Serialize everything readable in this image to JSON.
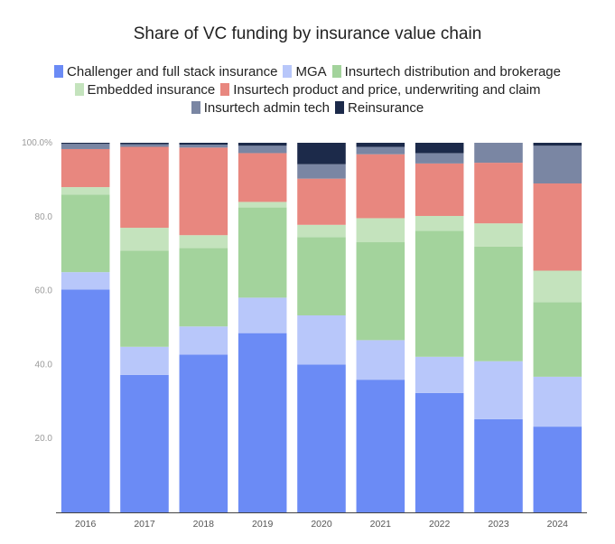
{
  "chart_data": {
    "type": "bar",
    "stacked": true,
    "title": "Share of VC funding by insurance value chain",
    "xlabel": "",
    "ylabel": "",
    "ylim": [
      0,
      100
    ],
    "yticks": [
      "20.0",
      "40.0",
      "60.0",
      "80.0",
      "100.0%"
    ],
    "ytick_values": [
      20,
      40,
      60,
      80,
      100
    ],
    "categories": [
      "2016",
      "2017",
      "2018",
      "2019",
      "2020",
      "2021",
      "2022",
      "2023",
      "2024"
    ],
    "series": [
      {
        "name": "Challenger and full stack insurance",
        "color": "#6b8bf5",
        "values": [
          60.3,
          37.2,
          42.7,
          48.5,
          40.0,
          35.9,
          32.3,
          25.2,
          23.2
        ]
      },
      {
        "name": "MGA",
        "color": "#b8c7fa",
        "values": [
          4.7,
          7.6,
          7.6,
          9.6,
          13.3,
          10.7,
          9.8,
          15.7,
          13.5
        ]
      },
      {
        "name": "Insurtech distribution and brokerage",
        "color": "#a3d39c",
        "values": [
          21.0,
          26.0,
          21.2,
          24.4,
          21.2,
          26.5,
          34.1,
          31.0,
          20.2
        ]
      },
      {
        "name": "Embedded insurance",
        "color": "#c4e3bd",
        "values": [
          2.0,
          6.2,
          3.5,
          1.5,
          3.3,
          6.5,
          4.0,
          6.3,
          8.5
        ]
      },
      {
        "name": "Insurtech product and price, underwriting and claim",
        "color": "#e8877f",
        "values": [
          10.3,
          21.9,
          23.7,
          13.2,
          12.5,
          17.3,
          14.2,
          16.4,
          23.6
        ]
      },
      {
        "name": "Insurtech admin tech",
        "color": "#7a86a3",
        "values": [
          1.4,
          0.7,
          0.8,
          2.0,
          3.9,
          2.0,
          2.8,
          5.4,
          10.2
        ]
      },
      {
        "name": "Reinsurance",
        "color": "#1c2a4a",
        "values": [
          0.3,
          0.4,
          0.5,
          0.8,
          5.8,
          1.1,
          2.8,
          0.0,
          0.8
        ]
      }
    ],
    "legend_position": "top-center",
    "grid": false
  }
}
